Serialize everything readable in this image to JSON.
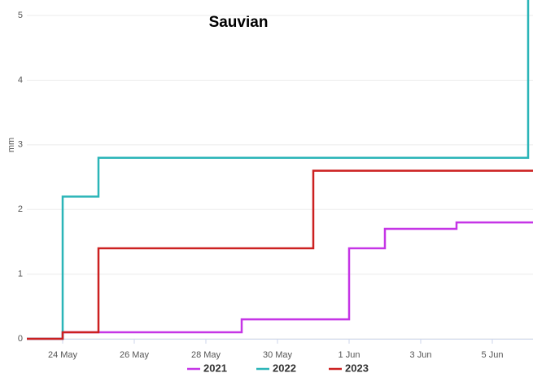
{
  "chart_data": {
    "type": "step",
    "title": "Sauvian",
    "y_label": "mm",
    "categories": [
      null,
      "24 May",
      null,
      "26 May",
      null,
      "28 May",
      null,
      "30 May",
      null,
      "1 Jun",
      null,
      "3 Jun",
      null,
      "5 Jun",
      null
    ],
    "series": [
      {
        "name": "2021",
        "color": "#c535e6",
        "values": [
          0,
          0.1,
          0.1,
          0.1,
          0.1,
          0.1,
          0.3,
          0.3,
          0.3,
          1.4,
          1.7,
          1.7,
          1.8,
          1.8,
          1.8
        ]
      },
      {
        "name": "2022",
        "color": "#2bb5b8",
        "values": [
          0,
          2.2,
          2.8,
          2.8,
          2.8,
          2.8,
          2.8,
          2.8,
          2.8,
          2.8,
          2.8,
          2.8,
          2.8,
          2.8,
          5.6
        ]
      },
      {
        "name": "2023",
        "color": "#cc2020",
        "values": [
          0,
          0.1,
          1.4,
          1.4,
          1.4,
          1.4,
          1.4,
          1.4,
          2.6,
          2.6,
          2.6,
          2.6,
          2.6,
          2.6,
          2.6
        ]
      }
    ],
    "ylim": [
      0,
      5.24
    ],
    "yticks": [
      0,
      1,
      2,
      3,
      4,
      5
    ],
    "grid": true,
    "legend": "bottom"
  }
}
